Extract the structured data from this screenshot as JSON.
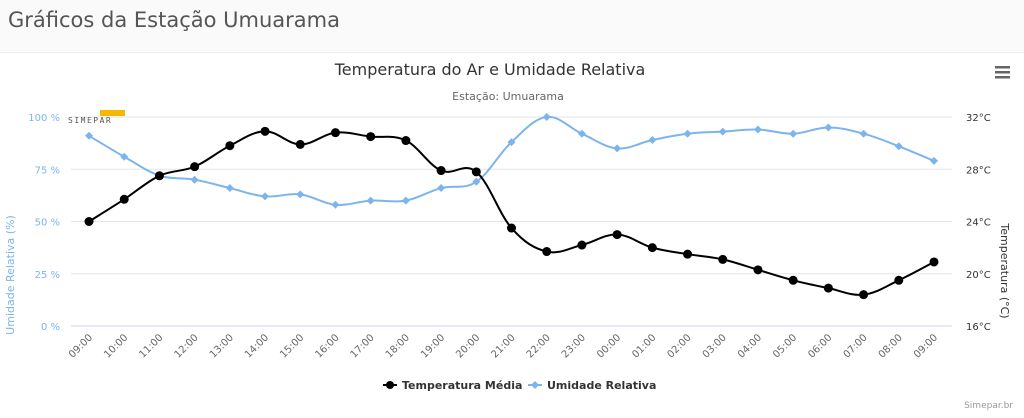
{
  "page": {
    "title": "Gráficos da Estação Umuarama"
  },
  "chart_menu": {
    "icon": "hamburger-menu-icon"
  },
  "logo": {
    "text": "SIMEPAR",
    "accent_color": "#f5b800"
  },
  "credits": "Simepar.br",
  "chart_data": {
    "type": "line",
    "title": "Temperatura do Ar e Umidade Relativa",
    "subtitle": "Estação: Umuarama",
    "x": [
      "09:00",
      "10:00",
      "11:00",
      "12:00",
      "13:00",
      "14:00",
      "15:00",
      "16:00",
      "17:00",
      "18:00",
      "19:00",
      "20:00",
      "21:00",
      "22:00",
      "23:00",
      "00:00",
      "01:00",
      "02:00",
      "03:00",
      "04:00",
      "05:00",
      "06:00",
      "07:00",
      "08:00",
      "09:00"
    ],
    "xlabel": "",
    "y_left": {
      "label": "Umidade Relativa (%)",
      "range": [
        0,
        100
      ],
      "ticks": [
        "0 %",
        "25 %",
        "50 %",
        "75 %",
        "100 %"
      ],
      "tick_values": [
        0,
        25,
        50,
        75,
        100
      ],
      "color": "#7cb5ec"
    },
    "y_right": {
      "label": "Temperatura (°C)",
      "range": [
        16,
        32
      ],
      "ticks": [
        "16°C",
        "20°C",
        "24°C",
        "28°C",
        "32°C"
      ],
      "tick_values": [
        16,
        20,
        24,
        28,
        32
      ],
      "color": "#333333"
    },
    "grid": true,
    "legend_position": "bottom-center",
    "series": [
      {
        "name": "Temperatura Média",
        "axis": "right",
        "color": "#000000",
        "marker": "circle",
        "values": [
          24.0,
          25.7,
          27.5,
          28.2,
          29.8,
          30.9,
          29.9,
          30.8,
          30.5,
          30.2,
          27.9,
          27.8,
          23.5,
          21.7,
          22.2,
          23.0,
          22.0,
          21.5,
          21.1,
          20.3,
          19.5,
          18.9,
          18.4,
          19.5,
          20.9
        ]
      },
      {
        "name": "Umidade Relativa",
        "axis": "left",
        "color": "#7cb5ec",
        "marker": "diamond",
        "values": [
          91,
          81,
          72,
          70,
          66,
          62,
          63,
          58,
          60,
          60,
          66,
          69,
          88,
          100,
          92,
          85,
          89,
          92,
          93,
          94,
          92,
          95,
          92,
          86,
          79
        ]
      }
    ]
  }
}
